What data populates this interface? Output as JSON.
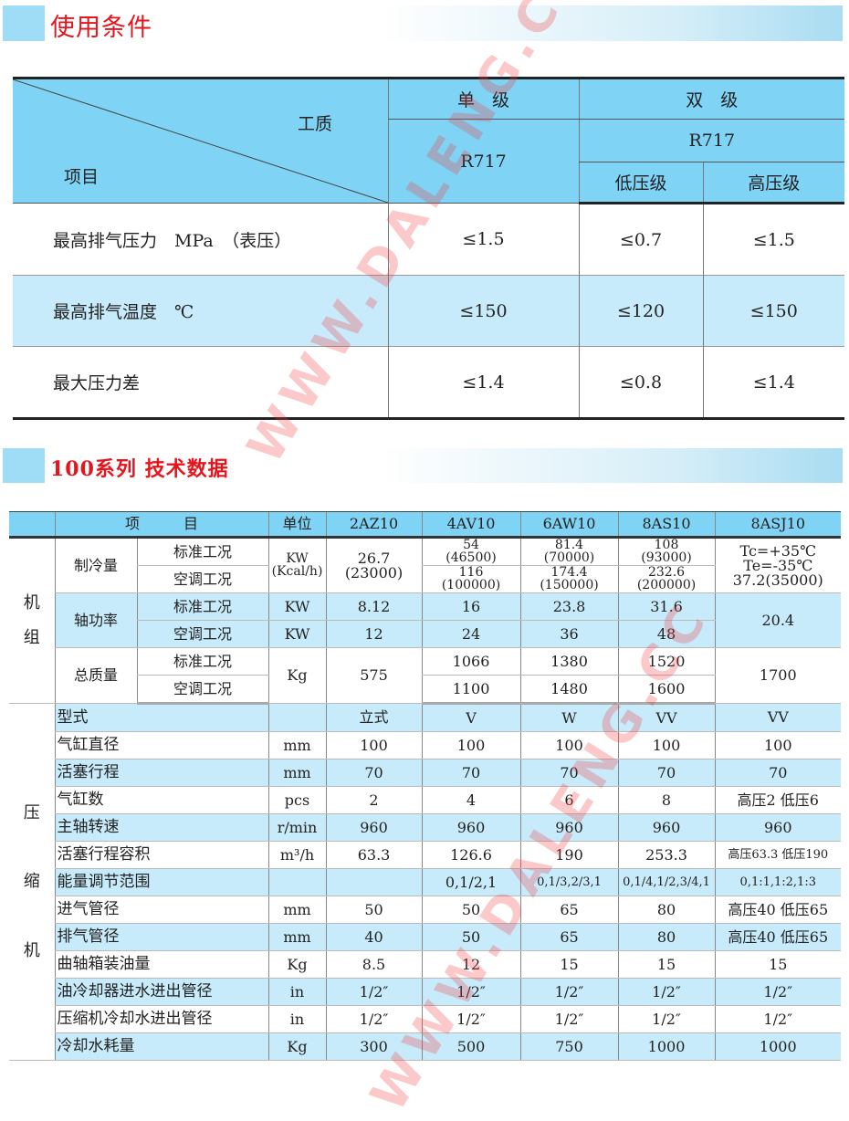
{
  "section1": {
    "title": "使用条件"
  },
  "conditions": {
    "header": {
      "medium": "工质",
      "item": "项目",
      "single": "单　级",
      "double": "双　级",
      "single_refrigerant": "R717",
      "double_refrigerant": "R717",
      "low": "低压级",
      "high": "高压级"
    },
    "rows": [
      {
        "name": "最高排气压力　MPa　（表压）",
        "single": "≤1.5",
        "low": "≤0.7",
        "high": "≤1.5"
      },
      {
        "name": "最高排气温度　℃",
        "single": "≤150",
        "low": "≤120",
        "high": "≤150"
      },
      {
        "name": "最大压力差",
        "single": "≤1.4",
        "low": "≤0.8",
        "high": "≤1.4"
      }
    ]
  },
  "section2": {
    "title": "100系列 技术数据"
  },
  "specs": {
    "header": {
      "item": "项　　　目",
      "unit": "单位",
      "models": [
        "2AZ10",
        "4AV10",
        "6AW10",
        "8AS10",
        "8ASJ10"
      ]
    },
    "unit_group": "机\n组",
    "compressor_group": "压\n\n缩\n\n机",
    "cooling": {
      "name": "制冷量",
      "std": "标准工况",
      "ac": "空调工况",
      "unit": "KW\n(Kcal/h)",
      "m2az": "26.7\n(23000)",
      "std_vals": [
        "54\n(46500)",
        "81.4\n(70000)",
        "108\n(93000)"
      ],
      "ac_vals": [
        "116\n(100000)",
        "174.4\n(150000)",
        "232.6\n(200000)"
      ],
      "m8asj": "Tc=+35℃\nTe=-35℃\n37.2(35000)"
    },
    "shaft": {
      "name": "轴功率",
      "std": "标准工况",
      "ac": "空调工况",
      "unit_std": "KW",
      "unit_ac": "KW",
      "std_vals": [
        "8.12",
        "16",
        "23.8",
        "31.6"
      ],
      "ac_vals": [
        "12",
        "24",
        "36",
        "48"
      ],
      "m8asj": "20.4"
    },
    "mass": {
      "name": "总质量",
      "std": "标准工况",
      "ac": "空调工况",
      "unit": "Kg",
      "m2az": "575",
      "std_vals": [
        "1066",
        "1380",
        "1520"
      ],
      "ac_vals": [
        "1100",
        "1480",
        "1600"
      ],
      "m8asj": "1700"
    },
    "compressor_rows": [
      {
        "name": "型式",
        "unit": "",
        "values": [
          "立式",
          "V",
          "W",
          "VV",
          "VV"
        ]
      },
      {
        "name": "气缸直径",
        "unit": "mm",
        "values": [
          "100",
          "100",
          "100",
          "100",
          "100"
        ]
      },
      {
        "name": "活塞行程",
        "unit": "mm",
        "values": [
          "70",
          "70",
          "70",
          "70",
          "70"
        ]
      },
      {
        "name": "气缸数",
        "unit": "pcs",
        "values": [
          "2",
          "4",
          "6",
          "8",
          "高压2 低压6"
        ]
      },
      {
        "name": "主轴转速",
        "unit": "r/min",
        "values": [
          "960",
          "960",
          "960",
          "960",
          "960"
        ]
      },
      {
        "name": "活塞行程容积",
        "unit": "m³/h",
        "values": [
          "63.3",
          "126.6",
          "190",
          "253.3",
          "高压63.3 低压190"
        ]
      },
      {
        "name": "能量调节范围",
        "unit": "",
        "values": [
          "",
          "0,1/2,1",
          "0,1/3,2/3,1",
          "0,1/4,1/2,3/4,1",
          "0,1:1,1:2,1:3"
        ]
      },
      {
        "name": "进气管径",
        "unit": "mm",
        "values": [
          "50",
          "50",
          "65",
          "80",
          "高压40 低压65"
        ]
      },
      {
        "name": "排气管径",
        "unit": "mm",
        "values": [
          "40",
          "50",
          "65",
          "80",
          "高压40 低压65"
        ]
      },
      {
        "name": "曲轴箱装油量",
        "unit": "Kg",
        "values": [
          "8.5",
          "12",
          "15",
          "15",
          "15"
        ]
      },
      {
        "name": "油冷却器进水进出管径",
        "unit": "in",
        "values": [
          "1/2″",
          "1/2″",
          "1/2″",
          "1/2″",
          "1/2″"
        ]
      },
      {
        "name": "压缩机冷却水进出管径",
        "unit": "in",
        "values": [
          "1/2″",
          "1/2″",
          "1/2″",
          "1/2″",
          "1/2″"
        ]
      },
      {
        "name": "冷却水耗量",
        "unit": "Kg",
        "values": [
          "300",
          "500",
          "750",
          "1000",
          "1000"
        ]
      }
    ]
  },
  "watermark": "WWW.DALENG.CC",
  "colors": {
    "header_blue": "#7fd3f5",
    "row_blue": "#c8ebfb",
    "title_red": "#e8141c"
  }
}
